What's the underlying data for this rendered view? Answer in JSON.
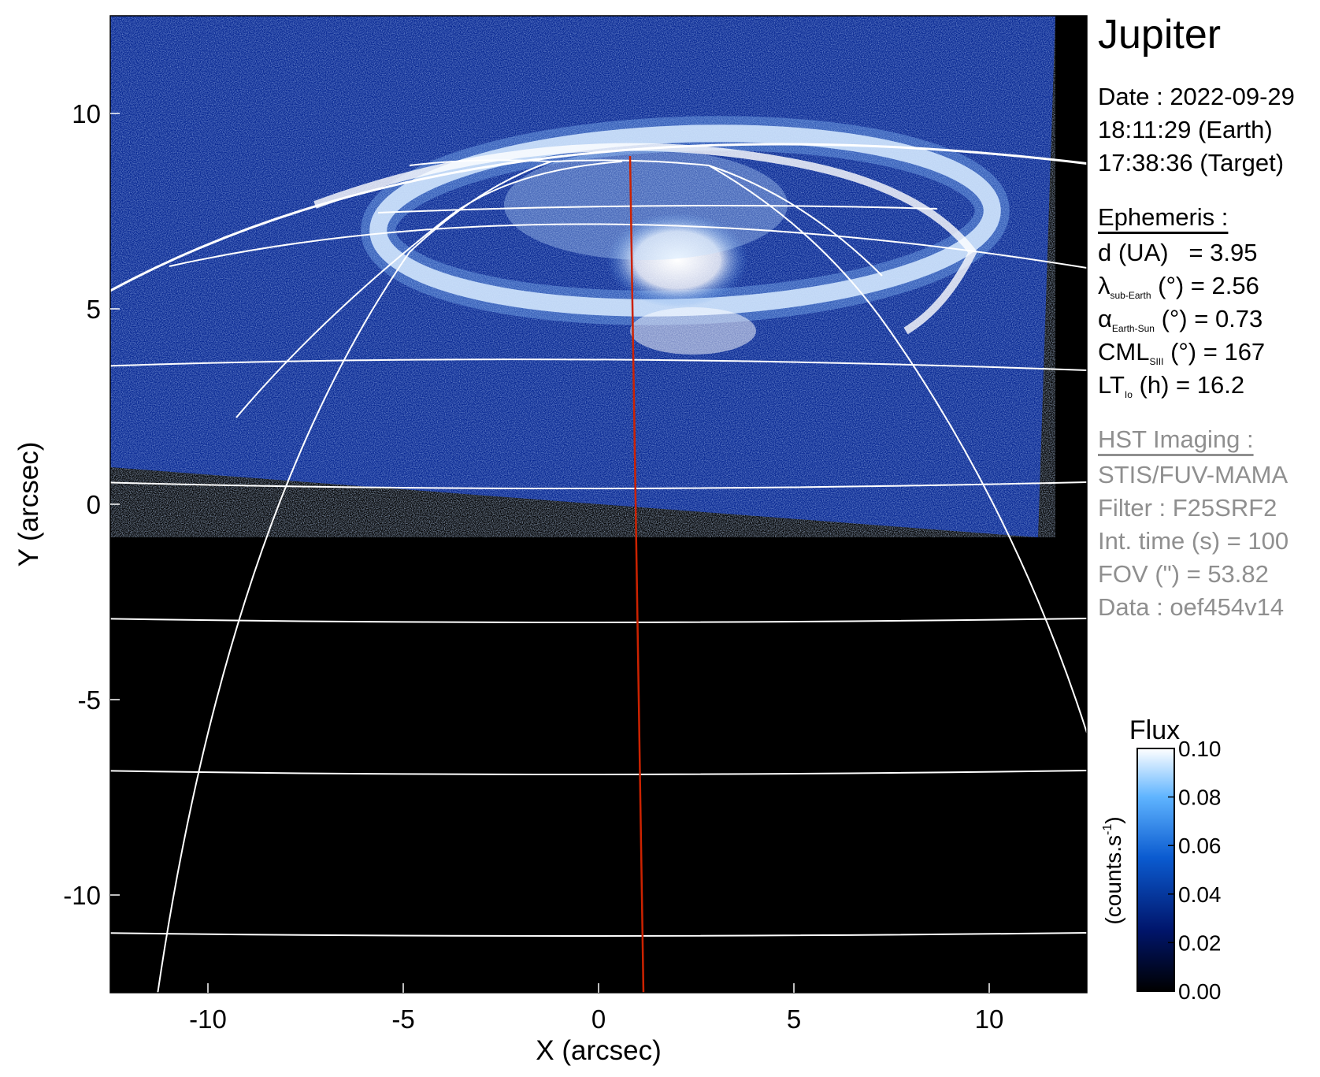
{
  "chart_data": {
    "type": "heatmap",
    "title": "Jupiter",
    "xlabel": "X (arcsec)",
    "ylabel": "Y (arcsec)",
    "xlim": [
      -12.5,
      12.5
    ],
    "ylim": [
      -12.5,
      12.5
    ],
    "x_ticks": [
      -10,
      -5,
      0,
      5,
      10
    ],
    "y_ticks": [
      10,
      5,
      0,
      -5,
      -10
    ],
    "colorbar": {
      "label": "Flux",
      "unit_label": "(counts.s",
      "unit_superscript": "-1",
      "unit_close": ")",
      "ticks": [
        "0.10",
        "0.08",
        "0.06",
        "0.04",
        "0.02",
        "0.00"
      ],
      "range": [
        0.0,
        0.1
      ],
      "colors": [
        "#000000",
        "#00156b",
        "#0b5bd0",
        "#5fb4ff",
        "#ffffff"
      ]
    },
    "central_meridian_color": "#cc2200",
    "grid_color": "#ffffff",
    "background_color": "#000000",
    "aurora_color": "#ffffff"
  },
  "info": {
    "date": "Date : 2022-09-29",
    "time_earth": "18:11:29 (Earth)",
    "time_target": "17:38:36 (Target)",
    "ephemeris_header": "Ephemeris :",
    "d_label": "d (UA)",
    "d_value": "   = 3.95",
    "lambda_symbol": "λ",
    "lambda_sub": "sub-Earth",
    "lambda_rest": " (°) = 2.56",
    "alpha_symbol": "α",
    "alpha_sub": "Earth-Sun",
    "alpha_rest": " (°) = 0.73",
    "cml_symbol": "CML",
    "cml_sub": "SIII",
    "cml_rest": " (°) = 167",
    "lt_symbol": "LT",
    "lt_sub": "Io",
    "lt_rest": " (h) = 16.2",
    "hst_header": "HST Imaging :",
    "instrument": "STIS/FUV-MAMA",
    "filter": "Filter : F25SRF2",
    "int_time": "Int. time (s) = 100",
    "fov": "FOV (\") = 53.82",
    "data_id": "Data : oef454v14"
  }
}
